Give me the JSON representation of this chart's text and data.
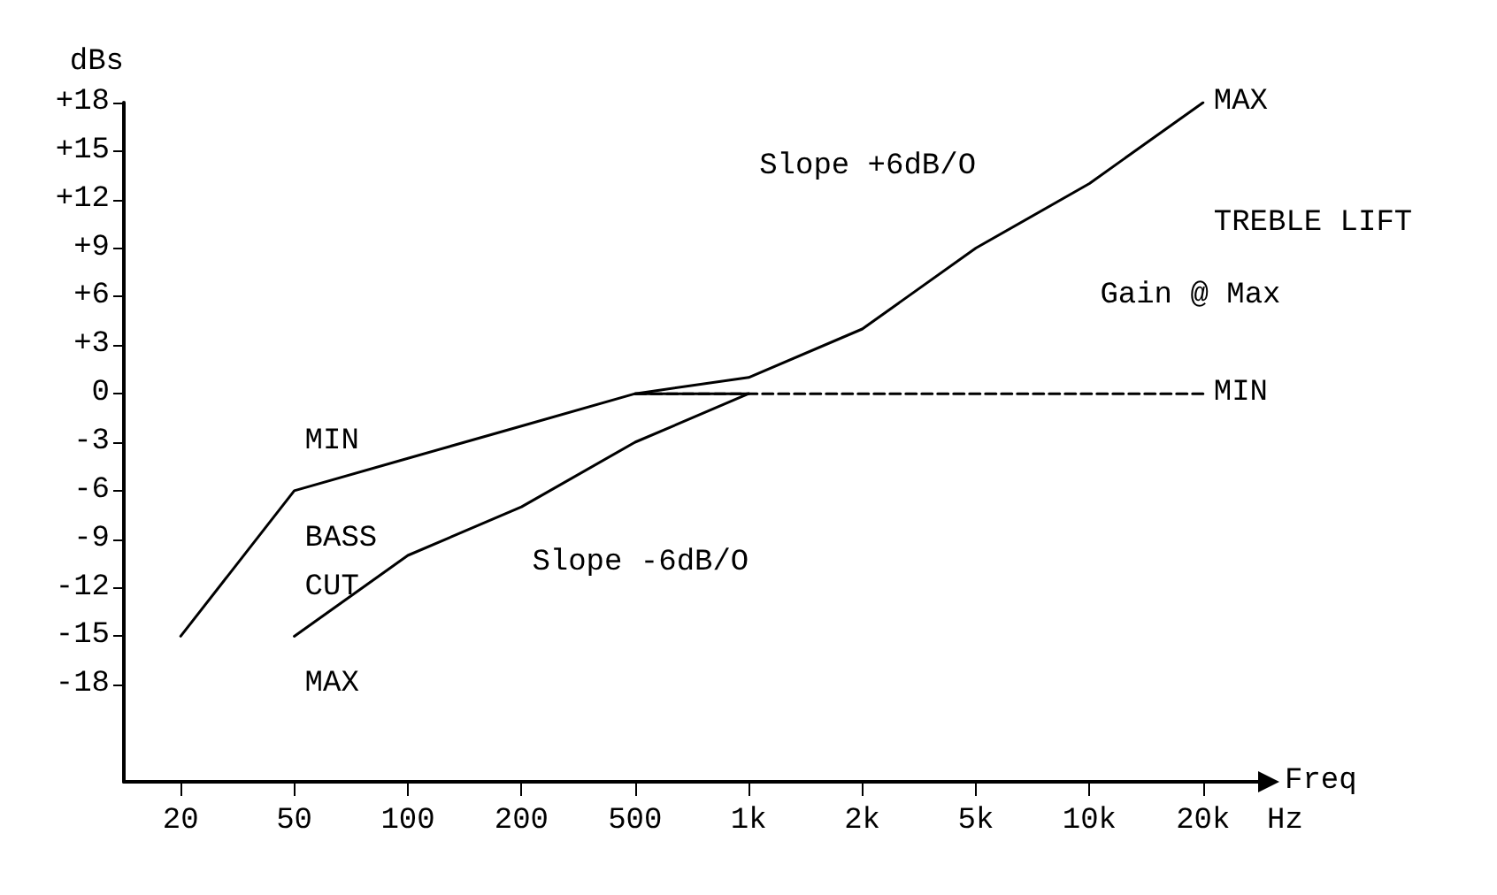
{
  "chart_data": {
    "type": "line",
    "ylabel": "dBs",
    "xlabel": "Freq",
    "categories": [
      "20",
      "50",
      "100",
      "200",
      "500",
      "1k",
      "2k",
      "5k",
      "10k",
      "20k"
    ],
    "series": [
      {
        "color": "#000000",
        "values": [
          null,
          -15,
          -10,
          -7,
          -3,
          0,
          null,
          null,
          null,
          null
        ]
      },
      {
        "color": "#000000",
        "values": [
          -15,
          -6,
          -4,
          -2,
          0,
          0,
          null,
          null,
          null,
          null
        ]
      },
      {
        "color": "#000000",
        "values": [
          null,
          null,
          null,
          null,
          0,
          1,
          4,
          9,
          13,
          18
        ]
      },
      {
        "color": "#000000",
        "line_style": "dashed",
        "values": [
          null,
          null,
          null,
          null,
          0,
          0,
          0,
          0,
          0,
          0
        ]
      }
    ],
    "ylim": [
      -24,
      18
    ],
    "yticks": [
      {
        "value": -18,
        "label": "-18"
      },
      {
        "value": -15,
        "label": "-15"
      },
      {
        "value": -12,
        "label": "-12"
      },
      {
        "value": -9,
        "label": "-9"
      },
      {
        "value": -6,
        "label": "-6"
      },
      {
        "value": -3,
        "label": "-3"
      },
      {
        "value": 0,
        "label": "0"
      },
      {
        "value": 3,
        "label": "+3"
      },
      {
        "value": 6,
        "label": "+6"
      },
      {
        "value": 9,
        "label": "+9"
      },
      {
        "value": 12,
        "label": "+12"
      },
      {
        "value": 15,
        "label": "+15"
      },
      {
        "value": 18,
        "label": "+18"
      }
    ],
    "annotations": [
      {
        "text": "MAX",
        "x": "20k",
        "y": 18
      },
      {
        "text": "MIN",
        "x": "20k",
        "y": 0
      },
      "TREBLE LIFT",
      "Slope +6dB/O",
      "Gain @ Max",
      "MIN",
      "BASS",
      "CUT",
      "MAX",
      "Slope -6dB/O",
      "Hz"
    ],
    "grid": false,
    "marker": "none",
    "line_style": "solid"
  }
}
